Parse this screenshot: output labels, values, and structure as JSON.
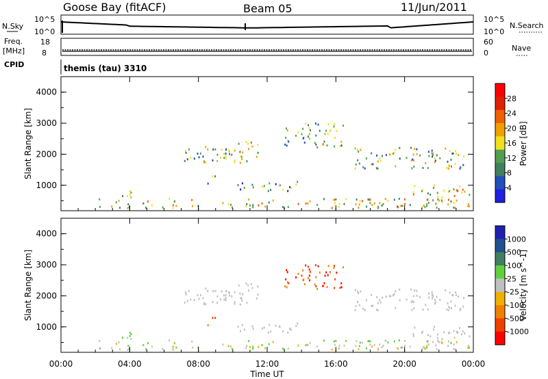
{
  "header": {
    "station": "Goose Bay (fitACF)",
    "beam": "Beam 05",
    "date": "11/Jun/2011"
  },
  "noise_panel": {
    "left_label": "N.Sky",
    "left_ticks": [
      "10^5",
      "10^0"
    ],
    "right_label": "N.Search",
    "right_ticks": [
      "10^5",
      "10^0"
    ]
  },
  "freq_panel": {
    "left_label_1": "Freq.",
    "left_label_2": "[MHz]",
    "left_ticks": [
      "18",
      "8"
    ],
    "right_label": "Nave",
    "right_ticks": [
      "60",
      "0"
    ]
  },
  "cpid": {
    "label": "CPID",
    "value": "themis (tau) 3310"
  },
  "colors": {
    "power_scale": [
      "#2020e0",
      "#2050b8",
      "#408060",
      "#50a050",
      "#f0e020",
      "#f0a000",
      "#f06000",
      "#e02000",
      "#ff0000"
    ],
    "velocity_scale": [
      "#2020b0",
      "#205090",
      "#408060",
      "#60d040",
      "#c0c0c0",
      "#f0b000",
      "#f08000",
      "#f04000",
      "#ff0000"
    ]
  },
  "chart_data": [
    {
      "type": "heatmap",
      "name": "power",
      "ylabel": "Slant Range [km]",
      "yticks": [
        1000,
        2000,
        3000,
        4000
      ],
      "ylim": [
        180,
        4500
      ],
      "xlim": [
        0,
        24
      ],
      "colorbar_label": "Power [dB]",
      "colorbar_ticks": [
        "28",
        "24",
        "20",
        "16",
        "12",
        "8",
        "4"
      ],
      "echo_regions": [
        {
          "t0": 2.2,
          "t1": 23.8,
          "r0": 250,
          "r1": 560,
          "level": 3
        },
        {
          "t0": 3.0,
          "t1": 4.2,
          "r0": 550,
          "r1": 850,
          "level": 2
        },
        {
          "t0": 8.5,
          "t1": 9.0,
          "r0": 950,
          "r1": 1350,
          "level": 2
        },
        {
          "t0": 7.0,
          "t1": 11.5,
          "r0": 1700,
          "r1": 2400,
          "level": 2
        },
        {
          "t0": 10.0,
          "t1": 14.0,
          "r0": 800,
          "r1": 1100,
          "level": 1
        },
        {
          "t0": 13.0,
          "t1": 16.5,
          "r0": 2200,
          "r1": 3000,
          "level": 2
        },
        {
          "t0": 17.0,
          "t1": 23.5,
          "r0": 1500,
          "r1": 2200,
          "level": 2
        },
        {
          "t0": 20.0,
          "t1": 23.8,
          "r0": 600,
          "r1": 1000,
          "level": 3
        }
      ]
    },
    {
      "type": "heatmap",
      "name": "velocity",
      "xlabel": "Time UT",
      "ylabel": "Slant Range [km]",
      "xticks": [
        "00:00",
        "04:00",
        "08:00",
        "12:00",
        "16:00",
        "20:00",
        "00:00"
      ],
      "yticks": [
        1000,
        2000,
        3000,
        4000
      ],
      "ylim": [
        180,
        4500
      ],
      "xlim": [
        0,
        24
      ],
      "colorbar_label": "Velocity [m s^-1]",
      "colorbar_ticks": [
        "1000",
        "500",
        "100",
        "25",
        "-25",
        "-100",
        "-500",
        "-1000"
      ]
    }
  ]
}
